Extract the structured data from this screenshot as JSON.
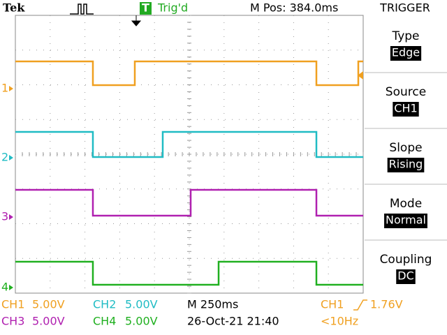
{
  "header": {
    "brand": "Tek",
    "trigger_icon": "T",
    "status": "Trig'd",
    "position": "M Pos: 384.0ms"
  },
  "menu": {
    "title": "TRIGGER",
    "items": [
      {
        "label": "Type",
        "value": "Edge"
      },
      {
        "label": "Source",
        "value": "CH1"
      },
      {
        "label": "Slope",
        "value": "Rising"
      },
      {
        "label": "Mode",
        "value": "Normal"
      },
      {
        "label": "Coupling",
        "value": "DC"
      }
    ]
  },
  "channel_markers": [
    "1",
    "2",
    "3",
    "4"
  ],
  "readout": {
    "ch1": {
      "label": "CH1",
      "scale": "5.00V"
    },
    "ch2": {
      "label": "CH2",
      "scale": "5.00V"
    },
    "ch3": {
      "label": "CH3",
      "scale": "5.00V"
    },
    "ch4": {
      "label": "CH4",
      "scale": "5.00V"
    },
    "timebase": "M 250ms",
    "datetime": "26-Oct-21 21:40",
    "trigger_source": "CH1",
    "trigger_level": "1.76V",
    "frequency": "<10Hz"
  }
}
